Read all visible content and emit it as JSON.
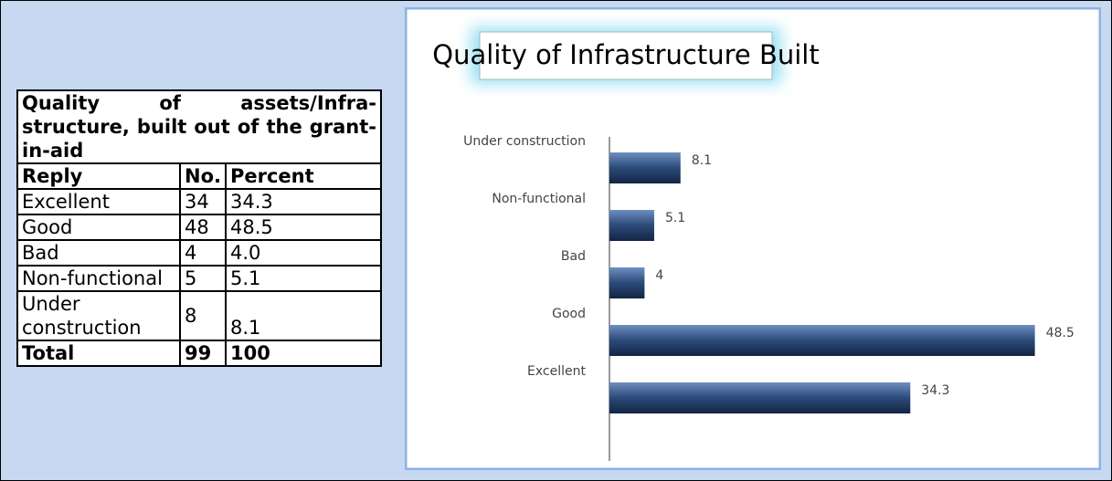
{
  "table": {
    "title": "Quality of assets/Infra-structure, built out of the grant-in-aid",
    "header": [
      "Reply",
      "No.",
      "Percent"
    ],
    "rows": [
      [
        "Excellent",
        "34",
        "34.3"
      ],
      [
        "Good",
        "48",
        "48.5"
      ],
      [
        "Bad",
        "4",
        "4.0"
      ],
      [
        "Non-functional",
        "5",
        "5.1"
      ],
      [
        "Under construction",
        "8",
        "8.1"
      ]
    ],
    "total": [
      "Total",
      "99",
      "100"
    ]
  },
  "chart_data": {
    "type": "bar",
    "orientation": "horizontal",
    "title": "Quality of Infrastructure Built",
    "categories": [
      "Under construction",
      "Non-functional",
      "Bad",
      "Good",
      "Excellent"
    ],
    "values": [
      8.1,
      5.1,
      4,
      48.5,
      34.3
    ],
    "color": "#2b4a7a"
  }
}
